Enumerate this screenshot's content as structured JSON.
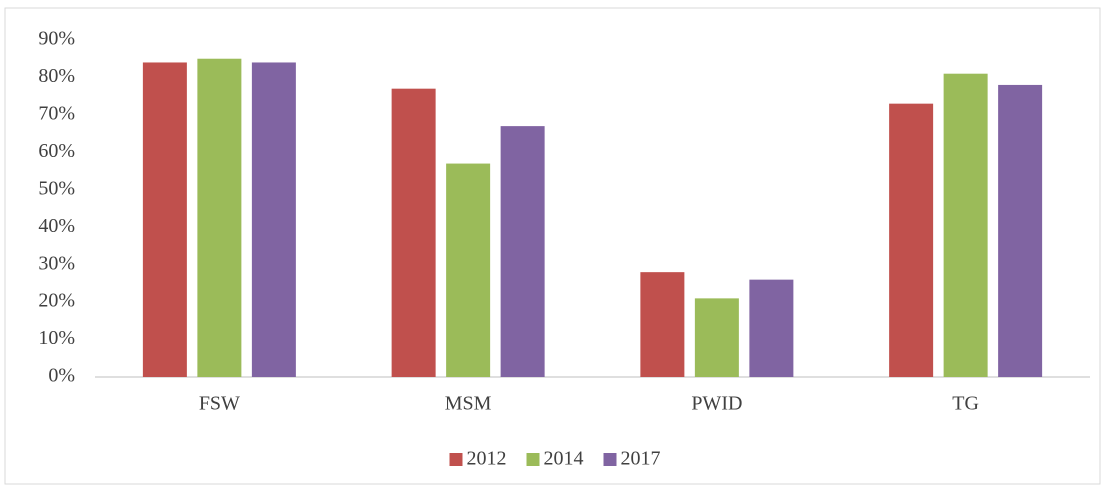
{
  "chart_data": {
    "type": "bar",
    "categories": [
      "FSW",
      "MSM",
      "PWID",
      "TG"
    ],
    "series": [
      {
        "name": "2012",
        "color": "#c0504d",
        "values": [
          84,
          77,
          28,
          73
        ]
      },
      {
        "name": "2014",
        "color": "#9bbb59",
        "values": [
          85,
          57,
          21,
          81
        ]
      },
      {
        "name": "2017",
        "color": "#8064a2",
        "values": [
          84,
          67,
          26,
          78
        ]
      }
    ],
    "ylim": [
      0,
      90
    ],
    "yticks": [
      {
        "value": 0,
        "label": "0%"
      },
      {
        "value": 10,
        "label": "10%"
      },
      {
        "value": 20,
        "label": "20%"
      },
      {
        "value": 30,
        "label": "30%"
      },
      {
        "value": 40,
        "label": "40%"
      },
      {
        "value": 50,
        "label": "50%"
      },
      {
        "value": 60,
        "label": "60%"
      },
      {
        "value": 70,
        "label": "70%"
      },
      {
        "value": 80,
        "label": "80%"
      },
      {
        "value": 90,
        "label": "90%"
      }
    ],
    "grid": false,
    "legend": "bottom"
  }
}
